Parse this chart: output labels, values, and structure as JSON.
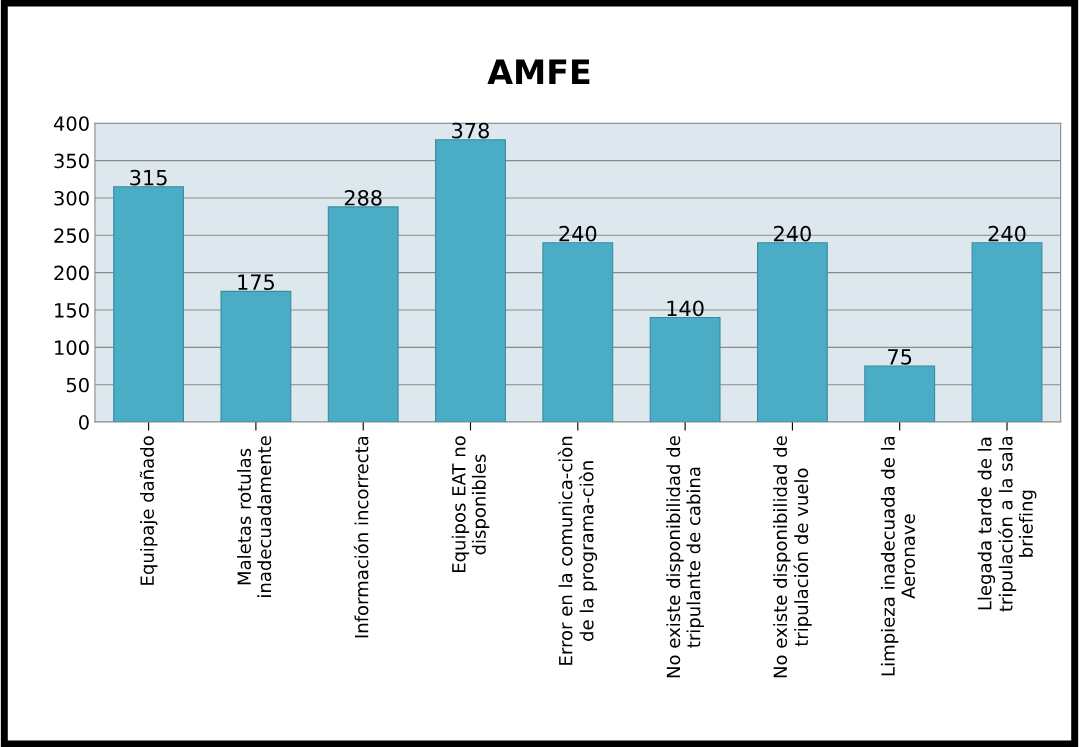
{
  "chart_data": {
    "type": "bar",
    "title": "AMFE",
    "categories": [
      "Equipaje dañado",
      "Maletas rotulas\ninadecuadamente",
      "Información incorrecta",
      "Equipos EAT no\ndisponibles",
      "Error en la comunica-ciòn\nde la programa-ciòn",
      "No existe disponibilidad de\ntripulante de cabina",
      "No existe disponibilidad de\ntripulación de vuelo",
      "Limpieza inadecuada de la\nAeronave",
      "Llegada tarde de la\ntripulación a la sala\nbriefing"
    ],
    "values": [
      315,
      175,
      288,
      378,
      240,
      140,
      240,
      75,
      240
    ],
    "color": "#4bacc6",
    "ylim": [
      0,
      400
    ],
    "yticks": [
      0,
      50,
      100,
      150,
      200,
      250,
      300,
      350,
      400
    ],
    "grid": "y",
    "data_labels": true
  }
}
